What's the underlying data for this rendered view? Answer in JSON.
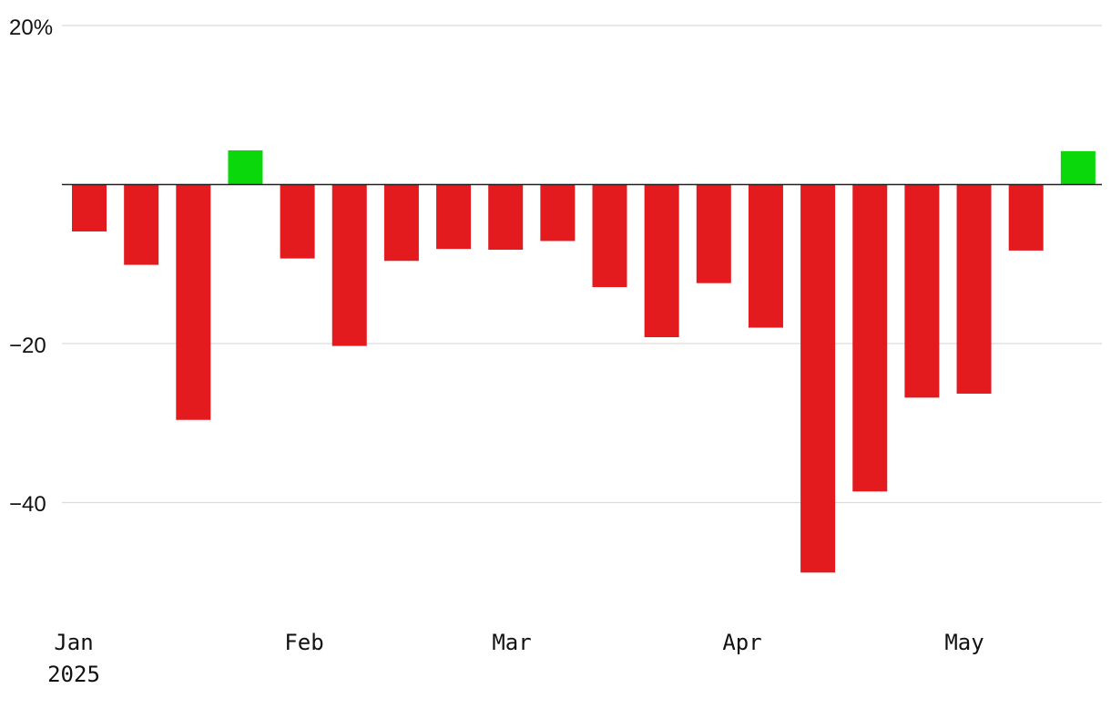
{
  "chart_data": {
    "type": "bar",
    "title": "",
    "xlabel": "",
    "ylabel": "",
    "ylim": [
      -55,
      20
    ],
    "grid": true,
    "y_ticks": [
      {
        "value": 20,
        "label": "20%"
      },
      {
        "value": -20,
        "label": "−20"
      },
      {
        "value": -40,
        "label": "−40"
      }
    ],
    "x_ticks": [
      {
        "index": 0,
        "label": "Jan",
        "sublabel": "2025"
      },
      {
        "index": 4.5,
        "label": "Feb"
      },
      {
        "index": 8.5,
        "label": "Mar"
      },
      {
        "index": 12.5,
        "label": "Apr"
      },
      {
        "index": 16.8,
        "label": "May"
      }
    ],
    "series": [
      {
        "values": [
          -5.9,
          -10.1,
          -29.6,
          4.3,
          -9.3,
          -20.3,
          -9.6,
          -8.1,
          -8.2,
          -7.1,
          -12.9,
          -19.2,
          -12.4,
          -18.0,
          -48.8,
          -38.6,
          -26.8,
          -26.3,
          -8.3,
          4.2
        ]
      }
    ],
    "colors": {
      "positive": "#0ad80a",
      "negative": "#e31b1f"
    }
  }
}
